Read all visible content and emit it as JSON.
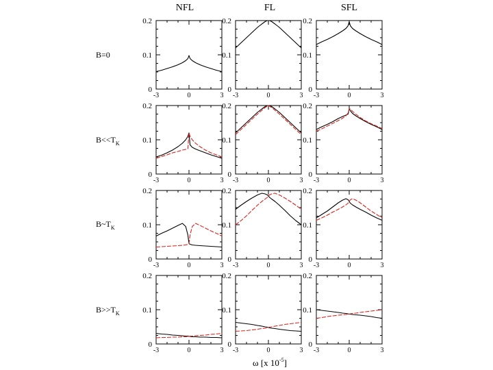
{
  "figure": {
    "x_axis_label": "ω [x 10",
    "x_axis_exponent": "-5",
    "x_axis_label_end": "]"
  },
  "chart_data": {
    "type": "line",
    "layout": "grid 4 rows x 3 columns",
    "columns": [
      "NFL",
      "FL",
      "SFL"
    ],
    "rows": [
      {
        "label": "B=0",
        "sub": ""
      },
      {
        "label": "B<<T",
        "sub": "K"
      },
      {
        "label": "B~T",
        "sub": "K"
      },
      {
        "label": "B>>T",
        "sub": "K"
      }
    ],
    "xlim": [
      -3,
      3
    ],
    "ylim": [
      0,
      0.2
    ],
    "xticks": [
      -3,
      0,
      3
    ],
    "yticks": [
      0,
      0.1,
      0.2
    ],
    "ytick_labels": [
      "0",
      "0.1",
      "0.2"
    ],
    "series_colors": {
      "black": "#000000",
      "red": "#e0201a"
    },
    "x_samples": [
      -3,
      -2.5,
      -2,
      -1.5,
      -1,
      -0.6,
      -0.3,
      -0.1,
      0,
      0.1,
      0.3,
      0.6,
      1,
      1.5,
      2,
      2.5,
      3
    ],
    "panels": [
      [
        {
          "series": [
            {
              "name": "black",
              "color": "#000000",
              "values": [
                0.051,
                0.055,
                0.06,
                0.065,
                0.071,
                0.077,
                0.083,
                0.089,
                0.098,
                0.089,
                0.083,
                0.077,
                0.071,
                0.065,
                0.06,
                0.055,
                0.051
              ]
            }
          ]
        },
        {
          "series": [
            {
              "name": "black",
              "color": "#000000",
              "values": [
                0.12,
                0.135,
                0.15,
                0.165,
                0.18,
                0.19,
                0.197,
                0.2,
                0.2,
                0.2,
                0.197,
                0.19,
                0.18,
                0.165,
                0.15,
                0.135,
                0.12
              ]
            }
          ]
        },
        {
          "series": [
            {
              "name": "black",
              "color": "#000000",
              "values": [
                0.13,
                0.138,
                0.145,
                0.153,
                0.162,
                0.17,
                0.177,
                0.185,
                0.197,
                0.185,
                0.177,
                0.17,
                0.162,
                0.153,
                0.145,
                0.138,
                0.13
              ]
            }
          ]
        }
      ],
      [
        {
          "series": [
            {
              "name": "black",
              "color": "#000000",
              "values": [
                0.05,
                0.055,
                0.062,
                0.07,
                0.08,
                0.09,
                0.1,
                0.11,
                0.12,
                0.085,
                0.078,
                0.073,
                0.068,
                0.062,
                0.056,
                0.051,
                0.046
              ]
            },
            {
              "name": "red",
              "color": "#e0201a",
              "values": [
                0.046,
                0.051,
                0.056,
                0.062,
                0.066,
                0.07,
                0.072,
                0.074,
                0.12,
                0.11,
                0.1,
                0.09,
                0.08,
                0.07,
                0.062,
                0.056,
                0.05
              ]
            }
          ]
        },
        {
          "series": [
            {
              "name": "black",
              "color": "#000000",
              "values": [
                0.12,
                0.135,
                0.15,
                0.165,
                0.18,
                0.19,
                0.197,
                0.2,
                0.2,
                0.2,
                0.197,
                0.19,
                0.18,
                0.165,
                0.15,
                0.135,
                0.12
              ]
            },
            {
              "name": "red",
              "color": "#e0201a",
              "values": [
                0.115,
                0.13,
                0.145,
                0.16,
                0.175,
                0.186,
                0.194,
                0.198,
                0.2,
                0.198,
                0.194,
                0.186,
                0.175,
                0.16,
                0.145,
                0.13,
                0.115
              ]
            }
          ]
        },
        {
          "series": [
            {
              "name": "black",
              "color": "#000000",
              "values": [
                0.13,
                0.138,
                0.145,
                0.153,
                0.162,
                0.168,
                0.172,
                0.175,
                0.19,
                0.185,
                0.177,
                0.17,
                0.162,
                0.153,
                0.145,
                0.138,
                0.13
              ]
            },
            {
              "name": "red",
              "color": "#e0201a",
              "values": [
                0.125,
                0.132,
                0.14,
                0.148,
                0.156,
                0.163,
                0.17,
                0.178,
                0.19,
                0.19,
                0.183,
                0.175,
                0.165,
                0.155,
                0.147,
                0.14,
                0.133
              ]
            }
          ]
        }
      ],
      [
        {
          "series": [
            {
              "name": "black",
              "color": "#000000",
              "values": [
                0.067,
                0.075,
                0.082,
                0.09,
                0.098,
                0.104,
                0.095,
                0.07,
                0.045,
                0.043,
                0.041,
                0.04,
                0.039,
                0.038,
                0.037,
                0.036,
                0.035
              ]
            },
            {
              "name": "red",
              "color": "#e0201a",
              "values": [
                0.035,
                0.036,
                0.037,
                0.038,
                0.039,
                0.04,
                0.041,
                0.043,
                0.045,
                0.07,
                0.095,
                0.104,
                0.098,
                0.09,
                0.082,
                0.075,
                0.067
              ]
            }
          ]
        },
        {
          "series": [
            {
              "name": "black",
              "color": "#000000",
              "values": [
                0.145,
                0.157,
                0.168,
                0.178,
                0.187,
                0.192,
                0.19,
                0.187,
                0.184,
                0.18,
                0.175,
                0.168,
                0.157,
                0.142,
                0.126,
                0.112,
                0.1
              ]
            },
            {
              "name": "red",
              "color": "#e0201a",
              "values": [
                0.1,
                0.112,
                0.126,
                0.142,
                0.157,
                0.168,
                0.175,
                0.18,
                0.184,
                0.187,
                0.19,
                0.192,
                0.187,
                0.178,
                0.168,
                0.157,
                0.145
              ]
            }
          ]
        },
        {
          "series": [
            {
              "name": "black",
              "color": "#000000",
              "values": [
                0.12,
                0.13,
                0.14,
                0.152,
                0.164,
                0.172,
                0.176,
                0.173,
                0.168,
                0.163,
                0.158,
                0.152,
                0.145,
                0.137,
                0.128,
                0.12,
                0.113
              ]
            },
            {
              "name": "red",
              "color": "#e0201a",
              "values": [
                0.113,
                0.12,
                0.128,
                0.137,
                0.145,
                0.152,
                0.158,
                0.163,
                0.168,
                0.173,
                0.176,
                0.172,
                0.164,
                0.152,
                0.14,
                0.13,
                0.12
              ]
            }
          ]
        }
      ],
      [
        {
          "series": [
            {
              "name": "black",
              "color": "#000000",
              "values": [
                0.031,
                0.029,
                0.028,
                0.026,
                0.025,
                0.024,
                0.023,
                0.023,
                0.022,
                0.022,
                0.021,
                0.021,
                0.02,
                0.02,
                0.019,
                0.019,
                0.018
              ]
            },
            {
              "name": "red",
              "color": "#e0201a",
              "values": [
                0.018,
                0.019,
                0.019,
                0.02,
                0.02,
                0.021,
                0.021,
                0.022,
                0.022,
                0.023,
                0.023,
                0.024,
                0.025,
                0.026,
                0.028,
                0.029,
                0.031
              ]
            }
          ]
        },
        {
          "series": [
            {
              "name": "black",
              "color": "#000000",
              "values": [
                0.063,
                0.061,
                0.059,
                0.057,
                0.054,
                0.052,
                0.05,
                0.049,
                0.048,
                0.047,
                0.046,
                0.045,
                0.043,
                0.041,
                0.039,
                0.038,
                0.037
              ]
            },
            {
              "name": "red",
              "color": "#e0201a",
              "values": [
                0.037,
                0.038,
                0.039,
                0.041,
                0.043,
                0.045,
                0.046,
                0.047,
                0.048,
                0.049,
                0.05,
                0.052,
                0.054,
                0.057,
                0.059,
                0.061,
                0.063
              ]
            }
          ]
        },
        {
          "series": [
            {
              "name": "black",
              "color": "#000000",
              "values": [
                0.1,
                0.098,
                0.096,
                0.094,
                0.092,
                0.09,
                0.089,
                0.088,
                0.087,
                0.087,
                0.086,
                0.085,
                0.084,
                0.082,
                0.08,
                0.077,
                0.075
              ]
            },
            {
              "name": "red",
              "color": "#e0201a",
              "values": [
                0.075,
                0.077,
                0.08,
                0.082,
                0.084,
                0.085,
                0.086,
                0.087,
                0.087,
                0.088,
                0.089,
                0.09,
                0.092,
                0.094,
                0.096,
                0.098,
                0.1
              ]
            }
          ]
        }
      ]
    ]
  }
}
